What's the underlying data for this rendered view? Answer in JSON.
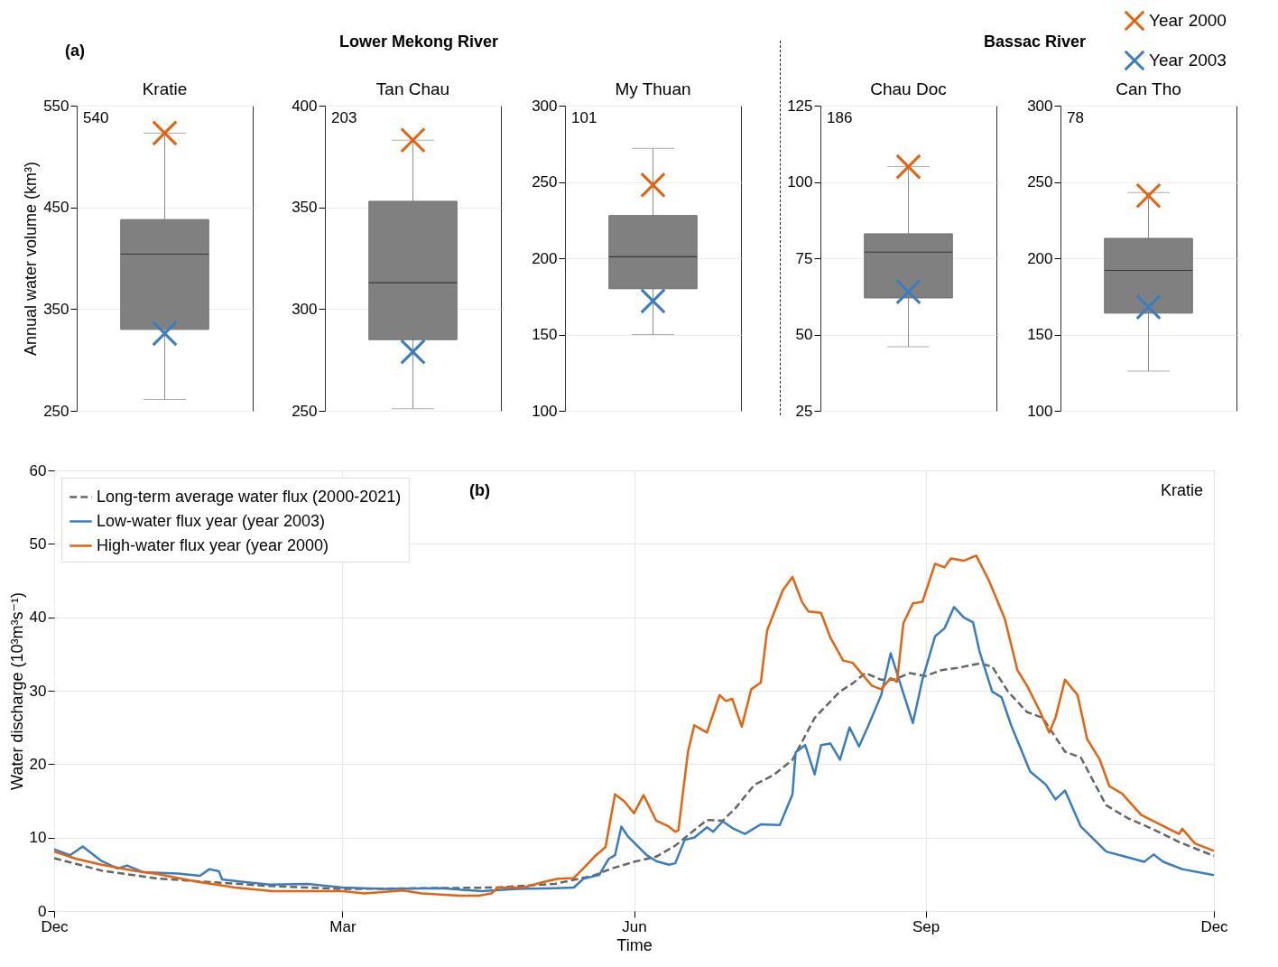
{
  "chart_data": [
    {
      "type": "box",
      "title": "Kratie",
      "ylabel": "Annual water volume (km³)",
      "categories": [
        null
      ],
      "boxes": [
        {
          "low": 261,
          "q1": 330,
          "median": 404,
          "q3": 438,
          "high": 523
        }
      ],
      "series": [
        {
          "type": "scatter",
          "color": "#e3630f",
          "values": [
            523
          ]
        },
        {
          "type": "scatter",
          "color": "#3a7dbf",
          "values": [
            326
          ]
        }
      ],
      "marker": "cross",
      "ylim": [
        250,
        550
      ],
      "yticks": [
        250,
        350,
        450,
        550
      ],
      "grid": "y",
      "annotations": [
        "540",
        "(a)",
        "Lower Mekong River"
      ]
    },
    {
      "type": "box",
      "title": "Tan Chau",
      "categories": [
        null
      ],
      "boxes": [
        {
          "low": 251,
          "q1": 285,
          "median": 313,
          "q3": 353,
          "high": 383
        }
      ],
      "series": [
        {
          "type": "scatter",
          "color": "#e3630f",
          "values": [
            383
          ]
        },
        {
          "type": "scatter",
          "color": "#3a7dbf",
          "values": [
            279
          ]
        }
      ],
      "marker": "cross",
      "ylim": [
        250,
        400
      ],
      "yticks": [
        250,
        300,
        350,
        400
      ],
      "grid": "y",
      "annotations": [
        "203"
      ]
    },
    {
      "type": "box",
      "title": "My Thuan",
      "categories": [
        null
      ],
      "boxes": [
        {
          "low": 150,
          "q1": 180,
          "median": 201,
          "q3": 228,
          "high": 272
        }
      ],
      "series": [
        {
          "type": "scatter",
          "color": "#e3630f",
          "values": [
            248
          ]
        },
        {
          "type": "scatter",
          "color": "#3a7dbf",
          "values": [
            172
          ]
        }
      ],
      "marker": "cross",
      "ylim": [
        100,
        300
      ],
      "yticks": [
        100,
        150,
        200,
        250,
        300
      ],
      "grid": "y",
      "annotations": [
        "101"
      ]
    },
    {
      "type": "box",
      "title": "Chau Doc",
      "categories": [
        null
      ],
      "boxes": [
        {
          "low": 46,
          "q1": 62,
          "median": 77,
          "q3": 83,
          "high": 105
        }
      ],
      "series": [
        {
          "type": "scatter",
          "color": "#e3630f",
          "values": [
            105
          ]
        },
        {
          "type": "scatter",
          "color": "#3a7dbf",
          "values": [
            64
          ]
        }
      ],
      "marker": "cross",
      "ylim": [
        25,
        125
      ],
      "yticks": [
        25,
        50,
        75,
        100,
        125
      ],
      "grid": "y",
      "annotations": [
        "186",
        "Bassac River"
      ]
    },
    {
      "type": "box",
      "title": "Can Tho",
      "categories": [
        null
      ],
      "boxes": [
        {
          "low": 126,
          "q1": 164,
          "median": 192,
          "q3": 213,
          "high": 243
        }
      ],
      "series": [
        {
          "type": "scatter",
          "name": "Year 2000",
          "color": "#e3630f",
          "values": [
            241
          ]
        },
        {
          "type": "scatter",
          "name": "Year 2003",
          "color": "#3a7dbf",
          "values": [
            168
          ]
        }
      ],
      "marker": "cross",
      "legend": "top right",
      "ylim": [
        100,
        300
      ],
      "yticks": [
        100,
        150,
        200,
        250,
        300
      ],
      "grid": "y",
      "annotations": [
        "78"
      ]
    },
    {
      "type": "line",
      "xlabel": "Time",
      "ylabel": "Water discharge (10³m³s⁻¹)",
      "xlim": [
        "1999-12-01",
        "2000-12-01"
      ],
      "xticks": [
        {
          "value": "1999-12-01",
          "label": "Dec"
        },
        {
          "value": "2000-03-01",
          "label": "Mar"
        },
        {
          "value": "2000-06-01",
          "label": "Jun"
        },
        {
          "value": "2000-09-01",
          "label": "Sep"
        },
        {
          "value": "2000-12-01",
          "label": "Dec"
        }
      ],
      "ylim": [
        0,
        60
      ],
      "yticks": [
        0,
        10,
        20,
        30,
        40,
        50,
        60
      ],
      "grid": true,
      "legend": "top left",
      "annotations": [
        "(b)",
        "Kratie"
      ],
      "series": [
        {
          "name": "Long-term average water flux (2000-2021)",
          "color": "#666666",
          "line_style": "dashed",
          "x": [
            "1999-12-01",
            "1999-12-16",
            "2000-01-03",
            "2000-01-21",
            "2000-02-07",
            "2000-03-01",
            "2000-03-26",
            "2000-04-19",
            "2000-05-07",
            "2000-05-19",
            "2000-05-25",
            "2000-06-01",
            "2000-06-08",
            "2000-06-14",
            "2000-06-24",
            "2000-06-29",
            "2000-07-03",
            "2000-07-09",
            "2000-07-15",
            "2000-07-21",
            "2000-07-28",
            "2000-08-05",
            "2000-08-09",
            "2000-08-13",
            "2000-08-18",
            "2000-08-22",
            "2000-08-27",
            "2000-09-01",
            "2000-09-06",
            "2000-09-11",
            "2000-09-18",
            "2000-09-22",
            "2000-09-27",
            "2000-10-03",
            "2000-10-08",
            "2000-10-15",
            "2000-10-20",
            "2000-10-28",
            "2000-11-04",
            "2000-11-11",
            "2000-11-20",
            "2000-12-01"
          ],
          "values": [
            7.2,
            5.5,
            4.4,
            3.9,
            3.4,
            3.0,
            3.1,
            3.2,
            3.7,
            4.8,
            5.8,
            6.7,
            7.4,
            8.9,
            12.4,
            12.3,
            14.0,
            17.2,
            18.5,
            20.6,
            26.3,
            29.9,
            31.0,
            32.4,
            31.5,
            31.5,
            32.4,
            32.0,
            32.8,
            33.1,
            33.7,
            33.3,
            29.9,
            27.1,
            26.3,
            21.7,
            20.9,
            14.4,
            12.6,
            11.3,
            9.4,
            7.5
          ]
        },
        {
          "name": "Low-water flux year (year 2003)",
          "color": "#3a7dbf",
          "line_style": "solid",
          "x": [
            "1999-12-01",
            "1999-12-06",
            "1999-12-10",
            "1999-12-16",
            "1999-12-21",
            "1999-12-24",
            "1999-12-29",
            "2000-01-09",
            "2000-01-16",
            "2000-01-19",
            "2000-01-22",
            "2000-01-23",
            "2000-01-29",
            "2000-02-07",
            "2000-02-19",
            "2000-03-01",
            "2000-03-14",
            "2000-04-01",
            "2000-04-14",
            "2000-04-25",
            "2000-05-07",
            "2000-05-13",
            "2000-05-16",
            "2000-05-21",
            "2000-05-24",
            "2000-05-26",
            "2000-05-28",
            "2000-05-30",
            "2000-06-02",
            "2000-06-05",
            "2000-06-08",
            "2000-06-12",
            "2000-06-14",
            "2000-06-17",
            "2000-06-20",
            "2000-06-24",
            "2000-06-26",
            "2000-06-29",
            "2000-07-02",
            "2000-07-06",
            "2000-07-11",
            "2000-07-17",
            "2000-07-21",
            "2000-07-22",
            "2000-07-25",
            "2000-07-28",
            "2000-07-30",
            "2000-08-02",
            "2000-08-05",
            "2000-08-08",
            "2000-08-11",
            "2000-08-14",
            "2000-08-18",
            "2000-08-21",
            "2000-08-24",
            "2000-08-28",
            "2000-08-31",
            "2000-09-04",
            "2000-09-07",
            "2000-09-10",
            "2000-09-13",
            "2000-09-16",
            "2000-09-18",
            "2000-09-22",
            "2000-09-25",
            "2000-09-28",
            "2000-10-04",
            "2000-10-09",
            "2000-10-12",
            "2000-10-15",
            "2000-10-20",
            "2000-10-28",
            "2000-11-03",
            "2000-11-09",
            "2000-11-12",
            "2000-11-15",
            "2000-11-21",
            "2000-12-01"
          ],
          "values": [
            8.4,
            7.6,
            8.8,
            6.8,
            5.8,
            6.2,
            5.3,
            5.1,
            4.8,
            5.7,
            5.4,
            4.3,
            4.0,
            3.6,
            3.7,
            3.2,
            3.0,
            3.1,
            2.7,
            3.0,
            3.1,
            3.2,
            4.4,
            4.9,
            7.1,
            7.6,
            11.5,
            10.2,
            8.9,
            7.6,
            6.8,
            6.3,
            6.5,
            9.7,
            10.0,
            11.4,
            10.8,
            12.2,
            11.3,
            10.5,
            11.8,
            11.7,
            15.9,
            21.6,
            22.6,
            18.6,
            22.6,
            22.8,
            20.6,
            25.0,
            22.4,
            25.3,
            29.4,
            35.1,
            31.0,
            25.6,
            31.5,
            37.4,
            38.5,
            41.4,
            40.0,
            39.3,
            35.4,
            29.9,
            29.1,
            25.3,
            19.0,
            17.2,
            15.2,
            16.4,
            11.5,
            8.1,
            7.4,
            6.7,
            7.7,
            6.7,
            5.7,
            4.9
          ]
        },
        {
          "name": "High-water flux year (year 2000)",
          "color": "#e3630f",
          "line_style": "solid",
          "x": [
            "1999-12-01",
            "1999-12-08",
            "1999-12-16",
            "1999-12-26",
            "2000-01-03",
            "2000-01-15",
            "2000-01-27",
            "2000-02-08",
            "2000-02-19",
            "2000-03-01",
            "2000-03-08",
            "2000-03-20",
            "2000-03-26",
            "2000-04-07",
            "2000-04-13",
            "2000-04-17",
            "2000-04-19",
            "2000-04-27",
            "2000-05-03",
            "2000-05-08",
            "2000-05-13",
            "2000-05-16",
            "2000-05-20",
            "2000-05-23",
            "2000-05-26",
            "2000-05-29",
            "2000-06-01",
            "2000-06-04",
            "2000-06-08",
            "2000-06-12",
            "2000-06-14",
            "2000-06-15",
            "2000-06-18",
            "2000-06-20",
            "2000-06-24",
            "2000-06-28",
            "2000-06-30",
            "2000-07-02",
            "2000-07-05",
            "2000-07-08",
            "2000-07-11",
            "2000-07-13",
            "2000-07-18",
            "2000-07-21",
            "2000-07-24",
            "2000-07-26",
            "2000-07-30",
            "2000-08-02",
            "2000-08-06",
            "2000-08-09",
            "2000-08-15",
            "2000-08-18",
            "2000-08-21",
            "2000-08-23",
            "2000-08-25",
            "2000-08-28",
            "2000-08-31",
            "2000-09-04",
            "2000-09-07",
            "2000-09-09",
            "2000-09-13",
            "2000-09-17",
            "2000-09-21",
            "2000-09-26",
            "2000-09-30",
            "2000-10-03",
            "2000-10-07",
            "2000-10-10",
            "2000-10-12",
            "2000-10-15",
            "2000-10-19",
            "2000-10-22",
            "2000-10-26",
            "2000-10-29",
            "2000-11-02",
            "2000-11-08",
            "2000-11-14",
            "2000-11-20",
            "2000-11-21",
            "2000-11-25",
            "2000-12-01"
          ],
          "values": [
            8.1,
            7.1,
            6.3,
            5.5,
            5.0,
            4.0,
            3.2,
            2.7,
            2.7,
            2.7,
            2.4,
            2.8,
            2.4,
            2.1,
            2.1,
            2.4,
            3.2,
            3.2,
            3.9,
            4.4,
            4.5,
            5.8,
            7.6,
            8.7,
            15.9,
            14.9,
            13.3,
            15.8,
            12.3,
            11.5,
            10.8,
            11.0,
            21.6,
            25.3,
            24.3,
            29.4,
            28.6,
            28.9,
            25.1,
            30.2,
            31.1,
            38.2,
            43.7,
            45.5,
            42.1,
            40.8,
            40.6,
            37.2,
            34.1,
            33.8,
            30.7,
            30.2,
            31.7,
            31.2,
            39.2,
            41.9,
            42.1,
            47.3,
            46.8,
            48.0,
            47.7,
            48.4,
            45.0,
            39.8,
            32.8,
            30.7,
            27.3,
            24.3,
            26.3,
            31.5,
            29.4,
            23.4,
            20.6,
            17.0,
            16.0,
            13.1,
            11.8,
            10.5,
            11.2,
            9.2,
            8.2
          ]
        }
      ]
    }
  ]
}
